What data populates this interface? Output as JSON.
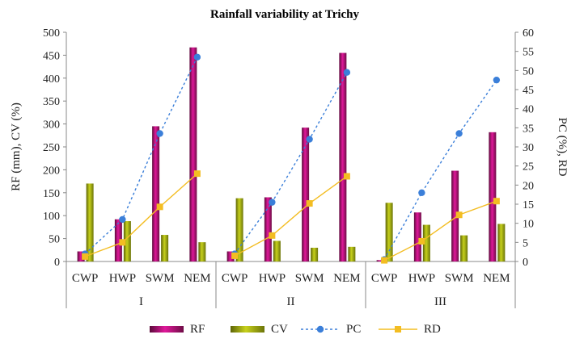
{
  "chart_data": {
    "type": "bar",
    "title": "Rainfall variability  at Trichy",
    "ylabel_left": "RF (mm), CV (%)",
    "ylabel_right": "PC (%), RD",
    "ylim_left": [
      0,
      500
    ],
    "ylim_right": [
      0,
      60
    ],
    "yticks_left": [
      "0",
      "50",
      "100",
      "150",
      "200",
      "250",
      "300",
      "350",
      "400",
      "450",
      "500"
    ],
    "yticks_right": [
      "0",
      "5",
      "10",
      "15",
      "20",
      "25",
      "30",
      "35",
      "40",
      "45",
      "50",
      "55",
      "60"
    ],
    "groups": [
      "I",
      "II",
      "III"
    ],
    "categories": [
      "CWP",
      "HWP",
      "SWM",
      "NEM"
    ],
    "bar_series": [
      {
        "name": "RF",
        "color": "#b5126e",
        "values": [
          [
            22,
            92,
            295,
            467
          ],
          [
            22,
            140,
            292,
            455
          ],
          [
            3,
            107,
            198,
            282
          ]
        ]
      },
      {
        "name": "CV",
        "color": "#8f9a12",
        "values": [
          [
            170,
            88,
            58,
            42
          ],
          [
            138,
            45,
            30,
            32
          ],
          [
            128,
            80,
            57,
            82
          ]
        ]
      }
    ],
    "line_series": [
      {
        "name": "PC",
        "color": "#3b7fd9",
        "axis": "right",
        "values": [
          [
            2,
            11,
            33.5,
            53.5
          ],
          [
            2,
            15.5,
            32,
            49.5
          ],
          [
            0.5,
            18,
            33.5,
            47.5
          ]
        ]
      },
      {
        "name": "RD",
        "color": "#f3bd22",
        "axis": "right",
        "values": [
          [
            1.3,
            5,
            14.3,
            23
          ],
          [
            1.5,
            6.8,
            15.2,
            22.3
          ],
          [
            0.3,
            5.3,
            12.2,
            15.8
          ]
        ]
      }
    ],
    "legend": {
      "position": "bottom",
      "items": [
        "RF",
        "CV",
        "PC",
        "RD"
      ]
    }
  }
}
